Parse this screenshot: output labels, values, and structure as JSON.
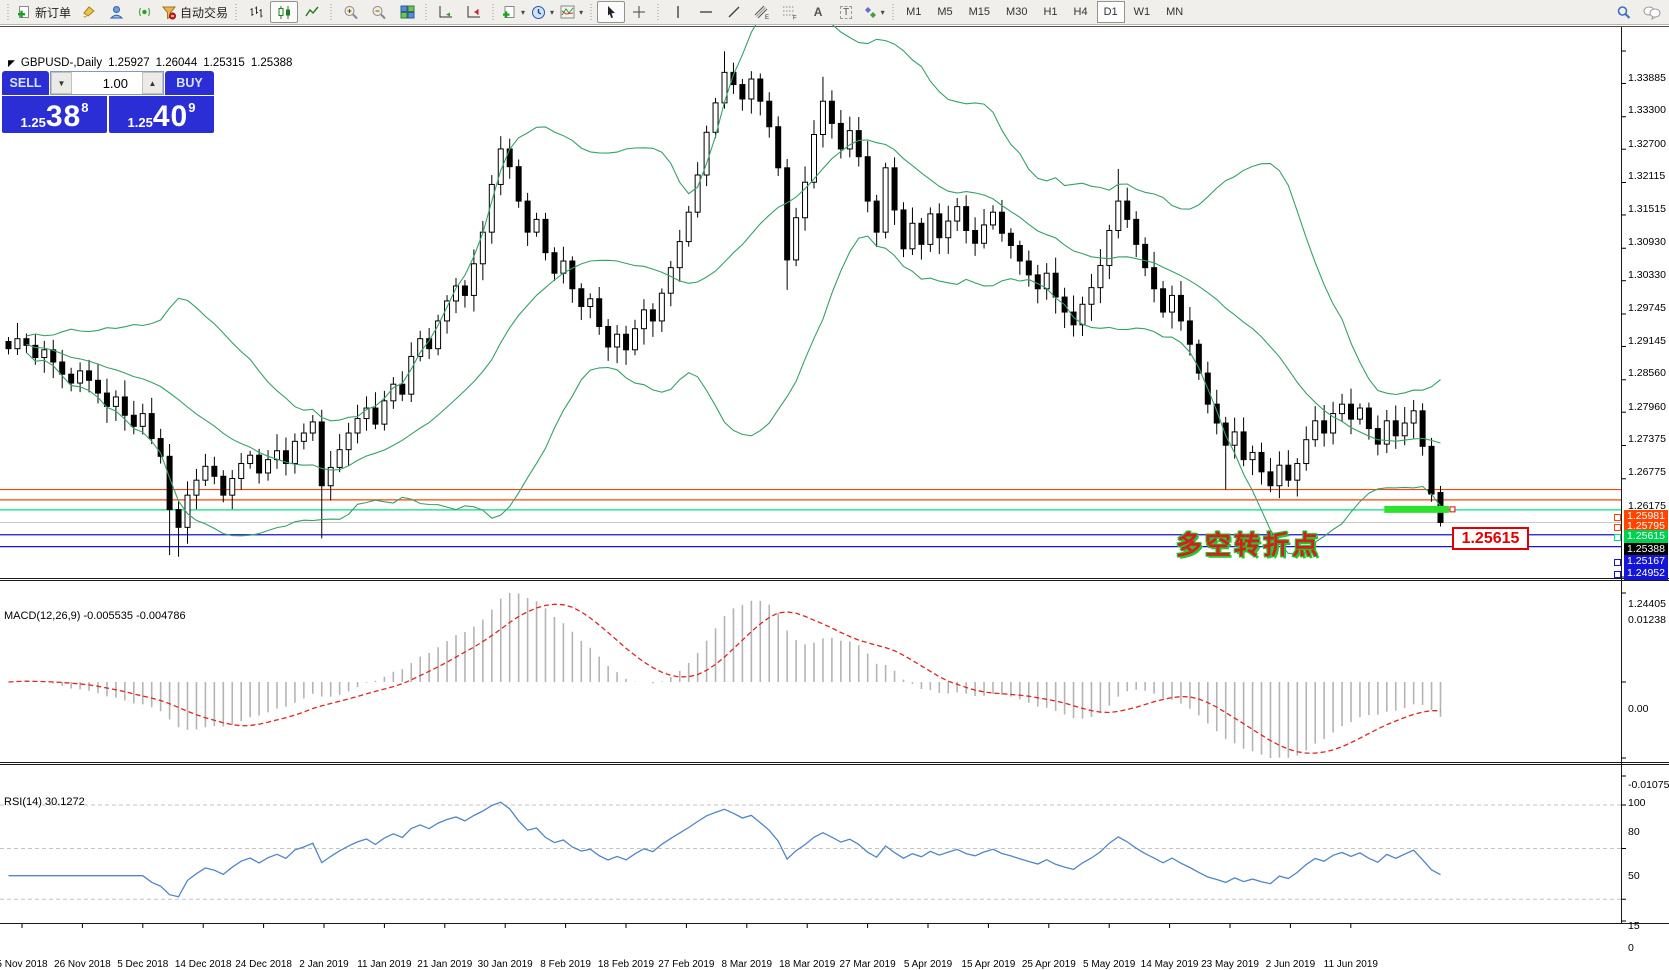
{
  "toolbar": {
    "new_order_label": "新订单",
    "autotrade_label": "自动交易",
    "text_tool_glyph": "A",
    "label_tool_glyph": "T",
    "timeframes": [
      "M1",
      "M5",
      "M15",
      "M30",
      "H1",
      "H4",
      "D1",
      "W1",
      "MN"
    ],
    "active_timeframe": "D1"
  },
  "chart_header": {
    "symbol_period": "GBPUSD-,Daily",
    "open": "1.25927",
    "high": "1.26044",
    "low": "1.25315",
    "close": "1.25388"
  },
  "trade_panel": {
    "sell_label": "SELL",
    "buy_label": "BUY",
    "volume": "1.00",
    "sell_price_prefix": "1.25",
    "sell_price_main": "38",
    "sell_price_sup": "8",
    "buy_price_prefix": "1.25",
    "buy_price_main": "40",
    "buy_price_sup": "9"
  },
  "annotation": {
    "text": "多空转折点",
    "price_box": "1.25615"
  },
  "panels": {
    "macd_label": "MACD(12,26,9) -0.005535 -0.004786",
    "rsi_label": "RSI(14) 30.1272"
  },
  "colors": {
    "trade_blue": "#2a2ed4",
    "bollinger_green": "#36a169",
    "hline_orange": "#ff4500",
    "hline_green": "#00df7e",
    "hline_green_label": "#00d052",
    "hline_blue": "#1515d6",
    "bid_line_gray": "#c9c9c9",
    "bid_label_black": "#000000",
    "macd_histogram": "#b4b4b4",
    "macd_signal_red": "#e02424",
    "rsi_blue": "#4f86c8",
    "trend_segment_green": "#2ce22c",
    "callout_red": "#e40000"
  },
  "chart_data": {
    "type": "candlestick",
    "symbol": "GBPUSD",
    "period": "Daily",
    "last_bar": {
      "open": 1.25927,
      "high": 1.26044,
      "low": 1.25315,
      "close": 1.25388
    },
    "price_axis_ticks": [
      "1.33885",
      "1.33300",
      "1.32700",
      "1.32115",
      "1.31515",
      "1.30930",
      "1.30330",
      "1.29745",
      "1.29145",
      "1.28560",
      "1.27960",
      "1.27375",
      "1.26775",
      "1.26175",
      "1.24405"
    ],
    "axis_range": {
      "top": 1.33885,
      "bottom": 1.24405
    },
    "hlines": [
      {
        "price": 1.25981,
        "color": "#ff4500",
        "label": "1.25981",
        "label_bg": "#ff4500",
        "marker": true
      },
      {
        "price": 1.25795,
        "color": "#ff4500",
        "label": "1.25795",
        "label_bg": "#ff4500",
        "marker": true
      },
      {
        "price": 1.25615,
        "color": "#00df7e",
        "label": "1.25615",
        "label_bg": "#00d052",
        "marker": true
      },
      {
        "price": 1.25388,
        "color": "#c9c9c9",
        "label": "1.25388",
        "label_bg": "#000000",
        "marker": false
      },
      {
        "price": 1.25167,
        "color": "#1515d6",
        "label": "1.25167",
        "label_bg": "#1515d6",
        "marker": true
      },
      {
        "price": 1.24952,
        "color": "#1515d6",
        "label": "1.24952",
        "label_bg": "#1515d6",
        "marker": true
      }
    ],
    "trend_segment": {
      "price": 1.25615,
      "from_bar": 154,
      "to_bar": 161,
      "color": "#2ce22c"
    },
    "bollinger": {
      "period": 20,
      "deviation": 2,
      "color": "#36a169"
    },
    "macd": {
      "fast": 12,
      "slow": 26,
      "signal": 9,
      "value": -0.005535,
      "signal_value": -0.004786,
      "scale_max": "0.01238",
      "scale_zero": "0.00",
      "scale_min": "-0.010751"
    },
    "rsi": {
      "period": 14,
      "value": 30.1272,
      "scale_ticks": [
        "100",
        "80",
        "50",
        "15",
        "0"
      ],
      "dashed_levels": [
        80,
        50,
        15
      ]
    },
    "date_ticks": [
      "5 Nov 2018",
      "26 Nov 2018",
      "5 Dec 2018",
      "14 Dec 2018",
      "24 Dec 2018",
      "2 Jan 2019",
      "11 Jan 2019",
      "21 Jan 2019",
      "30 Jan 2019",
      "8 Feb 2019",
      "18 Feb 2019",
      "27 Feb 2019",
      "8 Mar 2019",
      "18 Mar 2019",
      "27 Mar 2019",
      "5 Apr 2019",
      "15 Apr 2019",
      "25 Apr 2019",
      "5 May 2019",
      "14 May 2019",
      "23 May 2019",
      "2 Jun 2019",
      "11 Jun 2019"
    ],
    "candles": {
      "closes": [
        1.2852,
        1.287,
        1.2858,
        1.2836,
        1.285,
        1.2828,
        1.2806,
        1.279,
        1.2812,
        1.2795,
        1.2772,
        1.2748,
        1.2765,
        1.2732,
        1.2712,
        1.2735,
        1.269,
        1.2658,
        1.2562,
        1.253,
        1.2588,
        1.2615,
        1.264,
        1.2622,
        1.2588,
        1.2618,
        1.2645,
        1.266,
        1.2628,
        1.2652,
        1.2668,
        1.2645,
        1.2685,
        1.27,
        1.272,
        1.2605,
        1.2638,
        1.267,
        1.27,
        1.2726,
        1.2745,
        1.2716,
        1.2758,
        1.2788,
        1.277,
        1.2838,
        1.287,
        1.2852,
        1.2902,
        1.2938,
        1.2965,
        1.2948,
        1.3005,
        1.3062,
        1.3148,
        1.3212,
        1.318,
        1.3118,
        1.3062,
        1.3085,
        1.3025,
        1.2988,
        1.301,
        1.296,
        1.2928,
        1.2942,
        1.2892,
        1.2855,
        1.2878,
        1.285,
        1.2888,
        1.2922,
        1.2902,
        1.2952,
        1.2998,
        1.3045,
        1.3098,
        1.3165,
        1.3242,
        1.3295,
        1.335,
        1.3328,
        1.3302,
        1.3338,
        1.3298,
        1.3252,
        1.3178,
        1.3012,
        1.3088,
        1.3152,
        1.3238,
        1.3298,
        1.3258,
        1.3212,
        1.3245,
        1.3198,
        1.3118,
        1.3062,
        1.3178,
        1.3102,
        1.3032,
        1.3078,
        1.304,
        1.3095,
        1.3052,
        1.3082,
        1.3108,
        1.3065,
        1.3042,
        1.3075,
        1.3098,
        1.306,
        1.3038,
        1.301,
        1.2985,
        1.296,
        1.2988,
        1.2945,
        1.2918,
        1.2895,
        1.2932,
        1.2962,
        1.3002,
        1.3065,
        1.3118,
        1.3085,
        1.304,
        1.2998,
        1.296,
        1.2918,
        1.2948,
        1.2902,
        1.286,
        1.2808,
        1.2752,
        1.2718,
        1.2678,
        1.2702,
        1.2652,
        1.2665,
        1.263,
        1.2605,
        1.2642,
        1.2615,
        1.2645,
        1.2688,
        1.2722,
        1.27,
        1.2735,
        1.2752,
        1.2725,
        1.2745,
        1.2708,
        1.268,
        1.2722,
        1.2695,
        1.2718,
        1.274,
        1.2676,
        1.259,
        1.25388
      ],
      "overrides": {
        "18": {
          "l": 1.248
        },
        "19": {
          "l": 1.2477
        },
        "35": {
          "l": 1.251,
          "h": 1.2742
        },
        "55": {
          "h": 1.3235
        },
        "67": {
          "l": 1.283
        },
        "80": {
          "h": 1.3388
        },
        "87": {
          "l": 1.2958
        },
        "91": {
          "h": 1.3342
        },
        "124": {
          "h": 1.3176
        },
        "136": {
          "l": 1.2598
        },
        "159": {
          "l": 1.2576
        },
        "160": {
          "o": 1.25927,
          "h": 1.26044,
          "l": 1.25315,
          "c": 1.25388
        }
      }
    }
  }
}
